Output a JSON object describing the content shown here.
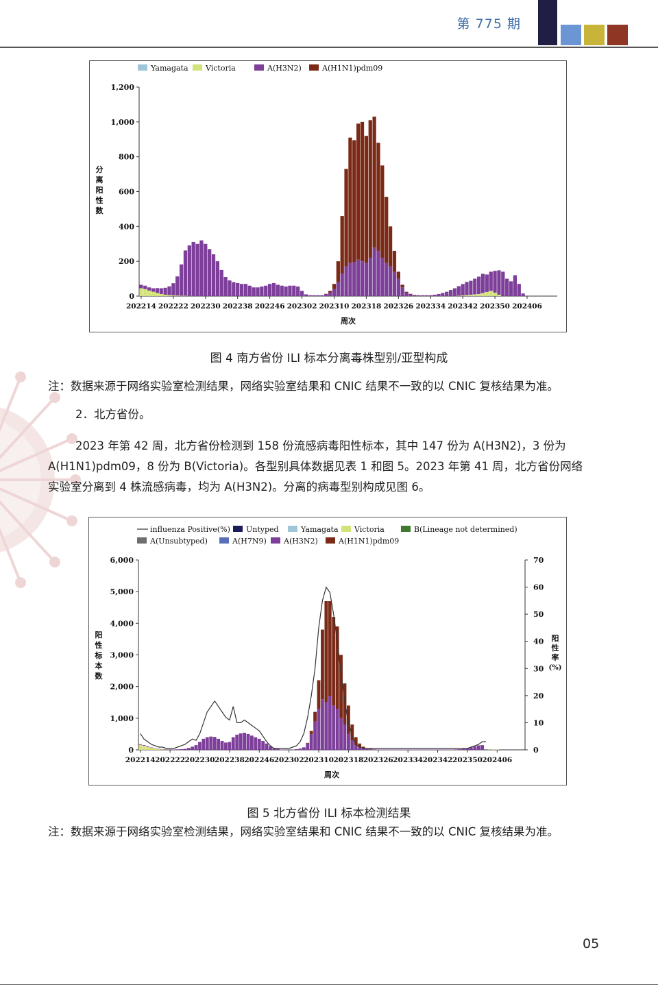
{
  "header": {
    "issue": "第 775 期",
    "colors": [
      "#1f1f45",
      "#6c95d3",
      "#c9b43a",
      "#8f3624"
    ]
  },
  "figure4": {
    "caption": "图 4   南方省份 ILI 标本分离毒株型别/亚型构成",
    "note": "注：数据来源于网络实验室检测结果，网络实验室结果和 CNIC 结果不一致的以 CNIC 复核结果为准。"
  },
  "text": {
    "section": "2．北方省份。",
    "p1": "2023 年第 42 周，北方省份检测到 158 份流感病毒阳性标本，其中 147 份为 A(H3N2)，3 份为",
    "p2": "A(H1N1)pdm09，8 份为 B(Victoria)。各型别具体数据见表 1 和图 5。2023 年第 41 周，北方省份网络",
    "p3": "实验室分离到 4 株流感病毒，均为 A(H3N2)。分离的病毒型别构成见图 6。"
  },
  "figure5": {
    "caption": "图 5   北方省份 ILI 标本检测结果",
    "note": "注：数据来源于网络实验室检测结果，网络实验室结果和 CNIC 结果不一致的以 CNIC 复核结果为准。"
  },
  "page_number": "05",
  "chart_data": [
    {
      "type": "bar",
      "stacked": true,
      "legend": [
        "Yamagata",
        "Victoria",
        "A(H3N2)",
        "A(H1N1)pdm09"
      ],
      "colors": {
        "Yamagata": "#9ec6d8",
        "Victoria": "#d4e27a",
        "A(H3N2)": "#7d3f9a",
        "A(H1N1)pdm09": "#7a2a16"
      },
      "legend_position": "top",
      "ylabel": "分离阳性数",
      "xlabel": "周次",
      "ylim": [
        0,
        1200
      ],
      "yticks": [
        "0",
        "200",
        "400",
        "600",
        "800",
        "1,000",
        "1,200"
      ],
      "xtick_labels": [
        "202214",
        "202222",
        "202230",
        "202238",
        "202246",
        "202302",
        "202310",
        "202318",
        "202326",
        "202334",
        "202342",
        "202350",
        "202406"
      ],
      "start_week": "202214",
      "weeks": 104,
      "series": [
        {
          "name": "Victoria",
          "values": [
            45,
            40,
            32,
            25,
            18,
            12,
            8,
            6,
            4,
            3,
            2,
            2,
            1,
            1,
            0,
            0,
            0,
            0,
            0,
            0,
            0,
            0,
            0,
            0,
            0,
            0,
            0,
            0,
            0,
            0,
            0,
            0,
            0,
            0,
            0,
            0,
            0,
            0,
            0,
            0,
            0,
            0,
            0,
            0,
            0,
            0,
            0,
            0,
            0,
            0,
            0,
            0,
            0,
            0,
            0,
            0,
            0,
            0,
            0,
            0,
            0,
            0,
            0,
            0,
            0,
            0,
            0,
            0,
            0,
            0,
            0,
            0,
            0,
            0,
            0,
            0,
            0,
            0,
            0,
            2,
            4,
            6,
            8,
            10,
            12,
            18,
            24,
            30,
            20,
            8,
            0,
            0,
            0,
            0,
            0,
            0,
            0,
            0,
            0,
            0,
            0,
            0,
            0,
            0
          ]
        },
        {
          "name": "A(H3N2)",
          "values": [
            20,
            20,
            18,
            20,
            28,
            33,
            40,
            50,
            70,
            110,
            180,
            260,
            290,
            310,
            300,
            320,
            300,
            270,
            240,
            200,
            150,
            110,
            90,
            80,
            75,
            70,
            70,
            60,
            50,
            50,
            55,
            60,
            70,
            75,
            65,
            60,
            55,
            60,
            60,
            55,
            30,
            10,
            5,
            5,
            5,
            5,
            10,
            20,
            40,
            80,
            130,
            170,
            190,
            195,
            210,
            200,
            190,
            220,
            280,
            260,
            220,
            190,
            170,
            140,
            100,
            50,
            20,
            10,
            5,
            5,
            5,
            5,
            5,
            8,
            12,
            18,
            25,
            35,
            45,
            55,
            65,
            75,
            80,
            90,
            100,
            110,
            100,
            110,
            125,
            140,
            140,
            100,
            85,
            120,
            70,
            15,
            0,
            0,
            0,
            0,
            0,
            0,
            0,
            0
          ]
        },
        {
          "name": "A(H1N1)pdm09",
          "values": [
            0,
            0,
            0,
            0,
            0,
            0,
            0,
            0,
            0,
            0,
            0,
            0,
            0,
            0,
            0,
            0,
            0,
            0,
            0,
            0,
            0,
            0,
            0,
            0,
            0,
            0,
            0,
            0,
            0,
            0,
            0,
            0,
            0,
            0,
            0,
            0,
            0,
            0,
            0,
            0,
            0,
            0,
            0,
            0,
            0,
            0,
            3,
            10,
            30,
            120,
            330,
            560,
            720,
            700,
            780,
            800,
            730,
            790,
            750,
            620,
            530,
            380,
            230,
            120,
            40,
            15,
            5,
            3,
            2,
            0,
            0,
            0,
            0,
            0,
            0,
            0,
            0,
            0,
            0,
            0,
            0,
            0,
            0,
            0,
            0,
            0,
            0,
            0,
            0,
            0,
            0,
            0,
            0,
            0,
            0,
            0,
            0,
            0,
            0,
            0,
            0,
            0,
            0,
            0
          ]
        }
      ]
    },
    {
      "type": "bar",
      "stacked": true,
      "line_series": "influenza Positive(%)",
      "legend": [
        "influenza Positive(%)",
        "Untyped",
        "Yamagata",
        "Victoria",
        "B(Lineage not determined)",
        "A(Unsubtyped)",
        "A(H7N9)",
        "A(H3N2)",
        "A(H1N1)pdm09"
      ],
      "colors": {
        "Untyped": "#1c1c5a",
        "Yamagata": "#9ec6d8",
        "Victoria": "#d4e27a",
        "B(Lineage not determined)": "#3f7a2f",
        "A(Unsubtyped)": "#6e6e6e",
        "A(H7N9)": "#5b6fb8",
        "A(H3N2)": "#7d3f9a",
        "A(H1N1)pdm09": "#7a2a16"
      },
      "legend_position": "top",
      "ylabel": "阳性标本数",
      "y2label": "阳性率(%)",
      "xlabel": "周次",
      "ylim": [
        0,
        6000
      ],
      "y2lim": [
        0,
        70
      ],
      "yticks": [
        "0",
        "1,000",
        "2,000",
        "3,000",
        "4,000",
        "5,000",
        "6,000"
      ],
      "y2ticks": [
        "0",
        "10",
        "20",
        "30",
        "40",
        "50",
        "60",
        "70"
      ],
      "xtick_labels": [
        "202214",
        "202222",
        "202230",
        "202238",
        "202246",
        "202302",
        "202310",
        "202318",
        "202326",
        "202334",
        "202342",
        "202350",
        "202406"
      ],
      "start_week": "202214",
      "weeks": 104,
      "series": [
        {
          "name": "Victoria",
          "values": [
            160,
            130,
            90,
            60,
            40,
            25,
            15,
            10,
            5,
            0,
            0,
            0,
            0,
            0,
            0,
            0,
            0,
            0,
            0,
            0,
            0,
            0,
            0,
            0,
            0,
            0,
            0,
            0,
            0,
            0,
            0,
            0,
            0,
            0,
            0,
            0,
            0,
            0,
            0,
            0,
            0,
            0,
            0,
            0,
            0,
            0,
            0,
            0,
            0,
            0,
            0,
            0,
            0,
            0,
            0,
            0,
            0,
            0,
            0,
            0,
            0,
            0,
            0,
            0,
            0,
            0,
            0,
            0,
            0,
            0,
            0,
            0,
            0,
            0,
            0,
            0,
            0,
            0,
            0,
            0,
            0,
            0,
            0,
            0,
            0,
            0,
            0,
            0,
            0,
            0,
            0,
            0,
            0,
            0,
            5,
            8,
            8,
            0,
            0,
            0,
            0,
            0,
            0,
            0
          ]
        },
        {
          "name": "A(H3N2)",
          "values": [
            20,
            20,
            20,
            15,
            10,
            10,
            10,
            10,
            10,
            10,
            15,
            20,
            30,
            60,
            100,
            150,
            250,
            350,
            400,
            420,
            410,
            350,
            280,
            230,
            250,
            400,
            480,
            520,
            540,
            500,
            450,
            400,
            350,
            280,
            200,
            120,
            60,
            30,
            10,
            5,
            5,
            10,
            20,
            40,
            80,
            200,
            500,
            900,
            1300,
            1600,
            1500,
            1700,
            1400,
            1300,
            1000,
            800,
            500,
            300,
            150,
            80,
            50,
            30,
            20,
            10,
            10,
            10,
            10,
            10,
            10,
            10,
            10,
            10,
            10,
            10,
            10,
            10,
            10,
            10,
            10,
            10,
            10,
            10,
            10,
            10,
            10,
            15,
            20,
            30,
            50,
            80,
            110,
            140,
            147,
            0,
            0,
            0,
            0,
            0,
            0,
            0,
            0,
            0,
            0,
            0
          ]
        },
        {
          "name": "A(H1N1)pdm09",
          "values": [
            0,
            0,
            0,
            0,
            0,
            0,
            0,
            0,
            0,
            0,
            0,
            0,
            0,
            0,
            0,
            0,
            0,
            0,
            0,
            0,
            0,
            0,
            0,
            0,
            0,
            0,
            0,
            0,
            0,
            0,
            0,
            0,
            0,
            0,
            0,
            0,
            0,
            0,
            0,
            0,
            0,
            0,
            0,
            0,
            0,
            20,
            100,
            300,
            900,
            2200,
            3200,
            3000,
            2800,
            2600,
            2000,
            1300,
            900,
            500,
            250,
            120,
            50,
            20,
            10,
            5,
            0,
            0,
            0,
            0,
            0,
            0,
            0,
            0,
            0,
            0,
            0,
            0,
            0,
            0,
            0,
            0,
            0,
            0,
            0,
            0,
            0,
            0,
            0,
            0,
            0,
            0,
            0,
            0,
            3,
            0,
            0,
            0,
            0,
            0,
            0,
            0,
            0,
            0,
            0,
            0
          ]
        },
        {
          "name": "influenza Positive(%)",
          "values": [
            6,
            4,
            3,
            2,
            1.5,
            1,
            1,
            0.5,
            0.5,
            0.5,
            1,
            1.5,
            2,
            3,
            4,
            3.5,
            6,
            10,
            14,
            16,
            18,
            16,
            14,
            12,
            11,
            16,
            10,
            10,
            11,
            10,
            9,
            8,
            7,
            5,
            3,
            1.5,
            0.5,
            0.5,
            0.5,
            0.5,
            0.5,
            1,
            1.5,
            3,
            6,
            12,
            20,
            30,
            45,
            55,
            60,
            58,
            50,
            40,
            28,
            18,
            10,
            5,
            2,
            1,
            0.5,
            0.5,
            0.5,
            0.5,
            0.5,
            0.5,
            0.5,
            0.5,
            0.5,
            0.5,
            0.5,
            0.5,
            0.5,
            0.5,
            0.5,
            0.5,
            0.5,
            0.5,
            0.5,
            0.5,
            0.5,
            0.5,
            0.5,
            0.5,
            0.5,
            0.5,
            0.5,
            0.5,
            0.5,
            1,
            1.5,
            2,
            3,
            3,
            0,
            0,
            0,
            0,
            0,
            0,
            0,
            0,
            0,
            0
          ]
        }
      ]
    }
  ]
}
